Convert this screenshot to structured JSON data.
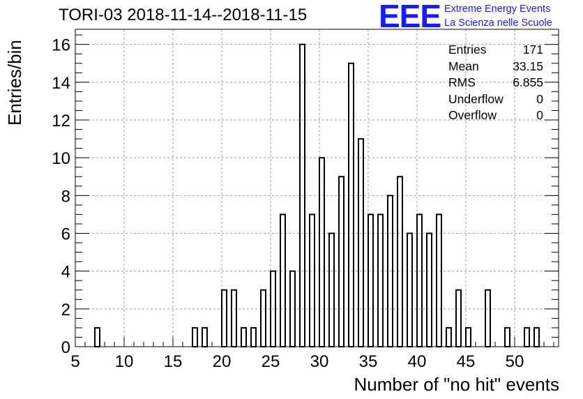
{
  "header": {
    "title": "TORI-03 2018-11-14--2018-11-15",
    "logo": "EEE",
    "logo_line1": "Extreme Energy Events",
    "logo_line2": "La Scienza nelle Scuole"
  },
  "stats": [
    {
      "label": "Entries",
      "value": "171"
    },
    {
      "label": "Mean",
      "value": "33.15"
    },
    {
      "label": "RMS",
      "value": "6.855"
    },
    {
      "label": "Underflow",
      "value": "0"
    },
    {
      "label": "Overflow",
      "value": "0"
    }
  ],
  "colors": {
    "logo": "#1a1aff",
    "grid": "#999999",
    "bars": "#000000"
  },
  "chart_data": {
    "type": "bar",
    "title": "TORI-03 2018-11-14--2018-11-15",
    "xlabel": "Number of \"no hit\" events",
    "ylabel": "Entries/bin",
    "xlim": [
      5,
      54.5
    ],
    "ylim": [
      0,
      16.8
    ],
    "bin_width": 0.5,
    "grid": true,
    "x_ticks": [
      5,
      10,
      15,
      20,
      25,
      30,
      35,
      40,
      45,
      50
    ],
    "y_ticks": [
      0,
      2,
      4,
      6,
      8,
      10,
      12,
      14,
      16
    ],
    "bins": [
      {
        "x": 7.0,
        "value": 1
      },
      {
        "x": 17.0,
        "value": 1
      },
      {
        "x": 18.0,
        "value": 1
      },
      {
        "x": 20.0,
        "value": 3
      },
      {
        "x": 21.0,
        "value": 3
      },
      {
        "x": 22.0,
        "value": 1
      },
      {
        "x": 23.0,
        "value": 1
      },
      {
        "x": 24.0,
        "value": 3
      },
      {
        "x": 25.0,
        "value": 4
      },
      {
        "x": 26.0,
        "value": 7
      },
      {
        "x": 27.0,
        "value": 4
      },
      {
        "x": 28.0,
        "value": 16
      },
      {
        "x": 29.0,
        "value": 7
      },
      {
        "x": 30.0,
        "value": 10
      },
      {
        "x": 31.0,
        "value": 6
      },
      {
        "x": 32.0,
        "value": 9
      },
      {
        "x": 33.0,
        "value": 15
      },
      {
        "x": 34.0,
        "value": 11
      },
      {
        "x": 35.0,
        "value": 7
      },
      {
        "x": 36.0,
        "value": 7
      },
      {
        "x": 37.0,
        "value": 8
      },
      {
        "x": 38.0,
        "value": 9
      },
      {
        "x": 39.0,
        "value": 6
      },
      {
        "x": 40.0,
        "value": 7
      },
      {
        "x": 41.0,
        "value": 6
      },
      {
        "x": 42.0,
        "value": 7
      },
      {
        "x": 43.0,
        "value": 1
      },
      {
        "x": 44.0,
        "value": 3
      },
      {
        "x": 45.0,
        "value": 1
      },
      {
        "x": 47.0,
        "value": 3
      },
      {
        "x": 49.0,
        "value": 1
      },
      {
        "x": 51.0,
        "value": 1
      },
      {
        "x": 52.0,
        "value": 1
      }
    ]
  }
}
